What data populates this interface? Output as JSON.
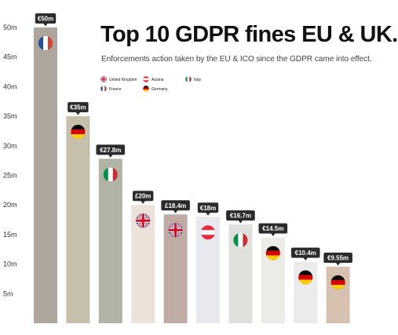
{
  "title": "Top 10 GDPR fines EU & UK.",
  "subtitle": "Enforcements action taken by the EU & ICO since the GDPR came into effect.",
  "legend": {
    "placement": "top-right",
    "items": [
      {
        "label": "United Kingdom",
        "flag": "uk-flag-icon"
      },
      {
        "label": "France",
        "flag": "france-flag-icon"
      },
      {
        "label": "Austria",
        "flag": "austria-flag-icon"
      },
      {
        "label": "Germany",
        "flag": "germany-flag-icon"
      },
      {
        "label": "Italy",
        "flag": "italy-flag-icon"
      }
    ]
  },
  "chart_data": {
    "type": "bar",
    "title": "Top 10 GDPR fines EU & UK.",
    "xlabel": "",
    "ylabel": "",
    "ylim": [
      0,
      50
    ],
    "yticks": [
      5,
      10,
      15,
      20,
      25,
      30,
      35,
      40,
      45,
      50
    ],
    "ytick_labels": [
      "5m",
      "10m",
      "15m",
      "20m",
      "25m",
      "30m",
      "35m",
      "40m",
      "45m",
      "50m"
    ],
    "grid": false,
    "values": [
      50,
      35,
      27.8,
      20,
      18.4,
      18,
      16.7,
      14.5,
      10.4,
      9.55
    ],
    "data_labels": [
      "€50m",
      "€35m",
      "€27.8m",
      "£20m",
      "£18.4m",
      "€18m",
      "€16.7m",
      "€14.5m",
      "€10.4m",
      "€9.55m"
    ],
    "flags": [
      "france",
      "germany",
      "italy",
      "uk",
      "uk",
      "austria",
      "italy",
      "germany",
      "germany",
      "germany"
    ],
    "bar_colors": [
      "#aea59d",
      "#c6bfac",
      "#b1b3a5",
      "#ede2da",
      "#c0aca4",
      "#e8e8ef",
      "#e0e1dc",
      "#ecebe7",
      "#ebebeb",
      "#d6c1b1"
    ]
  },
  "colors": {
    "label_bg": "#2b2b2b",
    "label_text": "#ffffff",
    "axis_text": "#333333",
    "uk_blue": "#1f3a8a",
    "uk_red": "#cf142b",
    "france_blue": "#1f4ea3",
    "france_red": "#e03c31",
    "germany_black": "#000000",
    "germany_red": "#dd0000",
    "germany_gold": "#ffce00",
    "italy_green": "#009246",
    "italy_red": "#ce2b37",
    "austria_red": "#ed2939"
  }
}
